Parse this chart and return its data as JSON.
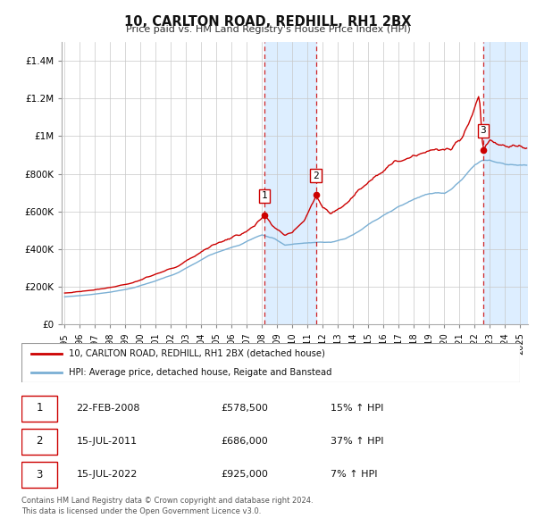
{
  "title": "10, CARLTON ROAD, REDHILL, RH1 2BX",
  "subtitle": "Price paid vs. HM Land Registry's House Price Index (HPI)",
  "legend_label_red": "10, CARLTON ROAD, REDHILL, RH1 2BX (detached house)",
  "legend_label_blue": "HPI: Average price, detached house, Reigate and Banstead",
  "red_color": "#cc0000",
  "blue_color": "#7aafd4",
  "shade_color": "#ddeeff",
  "vline_color": "#cc0000",
  "sale_points": [
    {
      "date_num": 2008.14,
      "price": 578500,
      "label": "1"
    },
    {
      "date_num": 2011.54,
      "price": 686000,
      "label": "2"
    },
    {
      "date_num": 2022.54,
      "price": 925000,
      "label": "3"
    }
  ],
  "table_rows": [
    {
      "num": "1",
      "date": "22-FEB-2008",
      "price": "£578,500",
      "hpi": "15% ↑ HPI"
    },
    {
      "num": "2",
      "date": "15-JUL-2011",
      "price": "£686,000",
      "hpi": "37% ↑ HPI"
    },
    {
      "num": "3",
      "date": "15-JUL-2022",
      "price": "£925,000",
      "hpi": "7% ↑ HPI"
    }
  ],
  "footer_line1": "Contains HM Land Registry data © Crown copyright and database right 2024.",
  "footer_line2": "This data is licensed under the Open Government Licence v3.0.",
  "ylim": [
    0,
    1500000
  ],
  "xlim": [
    1994.8,
    2025.5
  ],
  "yticks": [
    0,
    200000,
    400000,
    600000,
    800000,
    1000000,
    1200000,
    1400000
  ],
  "ytick_labels": [
    "£0",
    "£200K",
    "£400K",
    "£600K",
    "£800K",
    "£1M",
    "£1.2M",
    "£1.4M"
  ],
  "xticks": [
    1995,
    1996,
    1997,
    1998,
    1999,
    2000,
    2001,
    2002,
    2003,
    2004,
    2005,
    2006,
    2007,
    2008,
    2009,
    2010,
    2011,
    2012,
    2013,
    2014,
    2015,
    2016,
    2017,
    2018,
    2019,
    2020,
    2021,
    2022,
    2023,
    2024,
    2025
  ]
}
